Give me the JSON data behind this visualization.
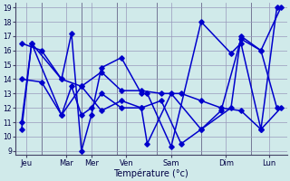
{
  "title": "",
  "xlabel": "Température (°c)",
  "background_color": "#d0eaea",
  "grid_color": "#9999bb",
  "line_color": "#0000cc",
  "days": [
    "Jeu",
    "Mar",
    "Mer",
    "Ven",
    "Sam",
    "Dim",
    "Lun"
  ],
  "yticks": [
    9,
    10,
    11,
    12,
    13,
    14,
    15,
    16,
    17,
    18,
    19
  ],
  "series1_x": [
    0,
    0.5,
    2,
    2.5,
    3,
    3.5,
    4,
    5,
    6,
    6.3,
    7.5,
    9,
    10.5,
    11,
    12,
    12.8
  ],
  "series1_y": [
    10.5,
    16.5,
    14.0,
    17.2,
    9.0,
    11.5,
    14.8,
    15.5,
    13.0,
    13.0,
    9.3,
    18.0,
    15.8,
    16.5,
    10.5,
    19.0
  ],
  "series2_x": [
    0,
    0.5,
    2,
    2.5,
    3,
    3.5,
    4,
    5,
    6,
    6.3,
    7.5,
    9,
    10.5,
    11,
    12,
    12.8
  ],
  "series2_y": [
    11.0,
    16.5,
    11.5,
    13.5,
    11.5,
    12.0,
    13.0,
    12.0,
    12.0,
    9.5,
    13.0,
    10.5,
    12.0,
    17.0,
    16.0,
    12.0
  ],
  "series3_x": [
    0,
    1,
    2,
    3,
    4,
    5,
    6,
    7,
    8,
    9,
    10,
    11,
    12,
    13
  ],
  "series3_y": [
    16.5,
    16.0,
    14.0,
    13.5,
    14.5,
    13.2,
    13.2,
    13.0,
    13.0,
    12.5,
    12.0,
    11.8,
    10.5,
    12.0
  ],
  "series4_x": [
    0,
    1,
    2,
    3,
    4,
    5,
    6,
    7,
    8,
    9,
    10,
    11,
    12,
    13
  ],
  "series4_y": [
    14.0,
    13.8,
    11.5,
    13.5,
    11.8,
    12.5,
    12.0,
    12.5,
    9.5,
    10.5,
    11.8,
    16.8,
    16.0,
    19.0
  ],
  "day_x": [
    0.25,
    2.25,
    3.5,
    5.25,
    7.5,
    10.25,
    12.4
  ],
  "day_sep_x": [
    1.0,
    3.0,
    4.8,
    6.8,
    9.0,
    11.5
  ],
  "xlim": [
    -0.3,
    13.3
  ],
  "ylim": [
    8.7,
    19.3
  ]
}
